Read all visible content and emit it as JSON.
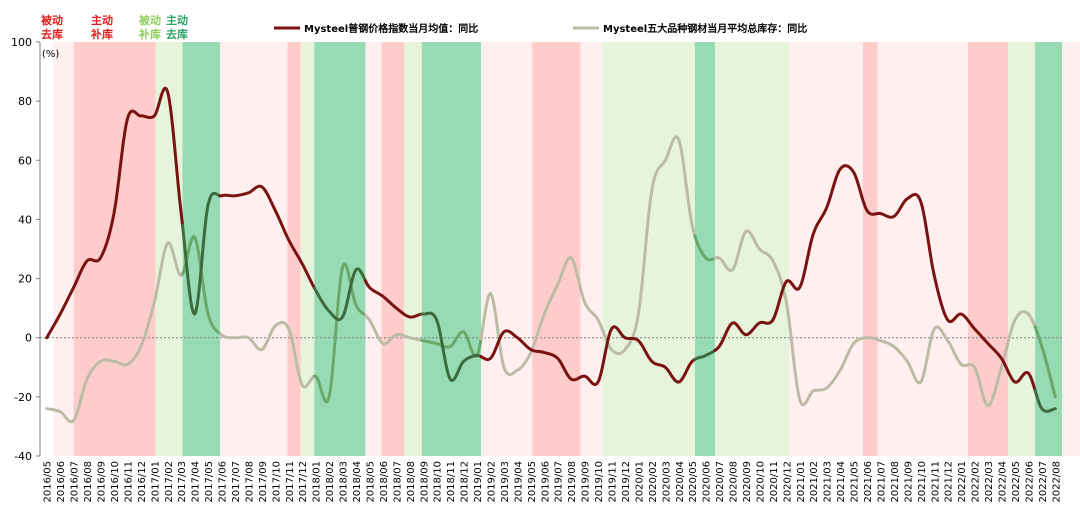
{
  "chart_data": {
    "type": "line",
    "unit_label": "(%)",
    "ylim": [
      -40,
      100
    ],
    "yticks": [
      -40,
      -20,
      0,
      20,
      40,
      60,
      80,
      100
    ],
    "grid": false,
    "legend_position": "top",
    "categories": [
      "2016/05",
      "2016/06",
      "2016/07",
      "2016/08",
      "2016/09",
      "2016/10",
      "2016/11",
      "2016/12",
      "2017/01",
      "2017/02",
      "2017/03",
      "2017/04",
      "2017/05",
      "2017/06",
      "2017/07",
      "2017/08",
      "2017/09",
      "2017/10",
      "2017/11",
      "2017/12",
      "2018/01",
      "2018/02",
      "2018/03",
      "2018/04",
      "2018/05",
      "2018/06",
      "2018/07",
      "2018/08",
      "2018/09",
      "2018/10",
      "2018/11",
      "2018/12",
      "2019/01",
      "2019/02",
      "2019/03",
      "2019/04",
      "2019/05",
      "2019/06",
      "2019/07",
      "2019/08",
      "2019/09",
      "2019/10",
      "2019/11",
      "2019/12",
      "2020/01",
      "2020/02",
      "2020/03",
      "2020/04",
      "2020/05",
      "2020/06",
      "2020/07",
      "2020/08",
      "2020/09",
      "2020/10",
      "2020/11",
      "2020/12",
      "2021/01",
      "2021/02",
      "2021/03",
      "2021/04",
      "2021/05",
      "2021/06",
      "2021/07",
      "2021/08",
      "2021/09",
      "2021/10",
      "2021/11",
      "2021/12",
      "2022/01",
      "2022/02",
      "2022/03",
      "2022/04",
      "2022/05",
      "2022/06",
      "2022/07",
      "2022/08"
    ],
    "series": [
      {
        "name": "Mysteel普钢价格指数当月均值：同比",
        "values": [
          0,
          8,
          17,
          26,
          27,
          42,
          74,
          75,
          75,
          83,
          42,
          8,
          45,
          48,
          48,
          49,
          51,
          43,
          33,
          25,
          16,
          9,
          7,
          23,
          17,
          14,
          10,
          7,
          8,
          6,
          -14,
          -8,
          -6,
          -7,
          2,
          0,
          -4,
          -5,
          -7,
          -14,
          -13,
          -15,
          3,
          0,
          -1,
          -8,
          -10,
          -15,
          -8,
          -6,
          -3,
          5,
          1,
          5,
          6,
          19,
          17,
          35,
          44,
          57,
          56,
          43,
          42,
          41,
          47,
          46,
          21,
          6,
          8,
          3,
          -2,
          -7,
          -15,
          -12,
          -24,
          -24
        ],
        "colors": {
          "dark": "#7a1212",
          "green": "#3e6b3e"
        }
      },
      {
        "name": "Mysteel五大品种钢材当月平均总库存：同比",
        "values": [
          -24,
          -25,
          -28,
          -14,
          -8,
          -8,
          -9,
          -3,
          12,
          32,
          21,
          34,
          8,
          1,
          0,
          0,
          -4,
          4,
          3,
          -16,
          -13,
          -20,
          24,
          11,
          6,
          -2,
          1,
          0,
          -1,
          -2,
          -3,
          2,
          -6,
          15,
          -10,
          -11,
          -5,
          8,
          18,
          27,
          12,
          6,
          -4,
          -4,
          8,
          50,
          60,
          67,
          38,
          27,
          27,
          23,
          36,
          30,
          26,
          12,
          -21,
          -18,
          -17,
          -11,
          -2,
          0,
          -1,
          -3,
          -8,
          -15,
          3,
          -1,
          -9,
          -10,
          -23,
          -10,
          6,
          8,
          -3,
          -20
        ],
        "colors": {
          "light": "#bcbca6",
          "green": "#69a869"
        }
      }
    ],
    "regions": [
      {
        "from": 0.5,
        "to": 2.0,
        "phase": "passive_destock"
      },
      {
        "from": 2.0,
        "to": 8.1,
        "phase": "active_restock"
      },
      {
        "from": 8.1,
        "to": 10.1,
        "phase": "passive_restock"
      },
      {
        "from": 10.1,
        "to": 12.9,
        "phase": "active_destock"
      },
      {
        "from": 12.9,
        "to": 17.9,
        "phase": "passive_destock"
      },
      {
        "from": 17.9,
        "to": 18.9,
        "phase": "active_restock"
      },
      {
        "from": 18.9,
        "to": 19.9,
        "phase": "passive_restock"
      },
      {
        "from": 19.9,
        "to": 23.7,
        "phase": "active_destock"
      },
      {
        "from": 23.7,
        "to": 24.9,
        "phase": "passive_destock"
      },
      {
        "from": 24.9,
        "to": 26.6,
        "phase": "active_restock"
      },
      {
        "from": 26.6,
        "to": 27.9,
        "phase": "passive_restock"
      },
      {
        "from": 27.9,
        "to": 32.3,
        "phase": "active_destock"
      },
      {
        "from": 32.3,
        "to": 36.1,
        "phase": "passive_destock"
      },
      {
        "from": 36.1,
        "to": 39.7,
        "phase": "active_restock"
      },
      {
        "from": 39.7,
        "to": 41.3,
        "phase": "passive_destock"
      },
      {
        "from": 41.3,
        "to": 48.2,
        "phase": "passive_restock"
      },
      {
        "from": 48.2,
        "to": 49.7,
        "phase": "active_destock"
      },
      {
        "from": 49.7,
        "to": 55.2,
        "phase": "passive_restock"
      },
      {
        "from": 55.2,
        "to": 60.7,
        "phase": "passive_destock"
      },
      {
        "from": 60.7,
        "to": 61.8,
        "phase": "active_restock"
      },
      {
        "from": 61.8,
        "to": 68.5,
        "phase": "passive_destock"
      },
      {
        "from": 68.5,
        "to": 71.5,
        "phase": "active_restock"
      },
      {
        "from": 71.5,
        "to": 73.5,
        "phase": "passive_restock"
      },
      {
        "from": 73.5,
        "to": 75.5,
        "phase": "active_destock"
      },
      {
        "from": 75.5,
        "to": 77.5,
        "phase": "passive_destock"
      },
      {
        "from": 77.5,
        "to": 79.5,
        "phase": "passive_restock"
      },
      {
        "from": 79.5,
        "to": 84.2,
        "phase": "active_destock"
      },
      {
        "from": 84.2,
        "to": 88.9,
        "phase": "passive_restock"
      },
      {
        "from": 88.9,
        "to": 92.1,
        "phase": "active_destock"
      }
    ]
  },
  "phase_legend": {
    "passive_destock": {
      "line1": "被动",
      "line2": "去库",
      "text_color": "#e0201c",
      "fill": "#fff0ef"
    },
    "active_restock": {
      "line1": "主动",
      "line2": "补库",
      "text_color": "#e0201c",
      "fill": "#ffcccc"
    },
    "passive_restock": {
      "line1": "被动",
      "line2": "补库",
      "text_color": "#8fcf5a",
      "fill": "#e6f4dc"
    },
    "active_destock": {
      "line1": "主动",
      "line2": "去库",
      "text_color": "#2ea36a",
      "fill": "#96dbb3"
    }
  },
  "colors": {
    "axis": "#808080",
    "tick_text": "#000000"
  }
}
